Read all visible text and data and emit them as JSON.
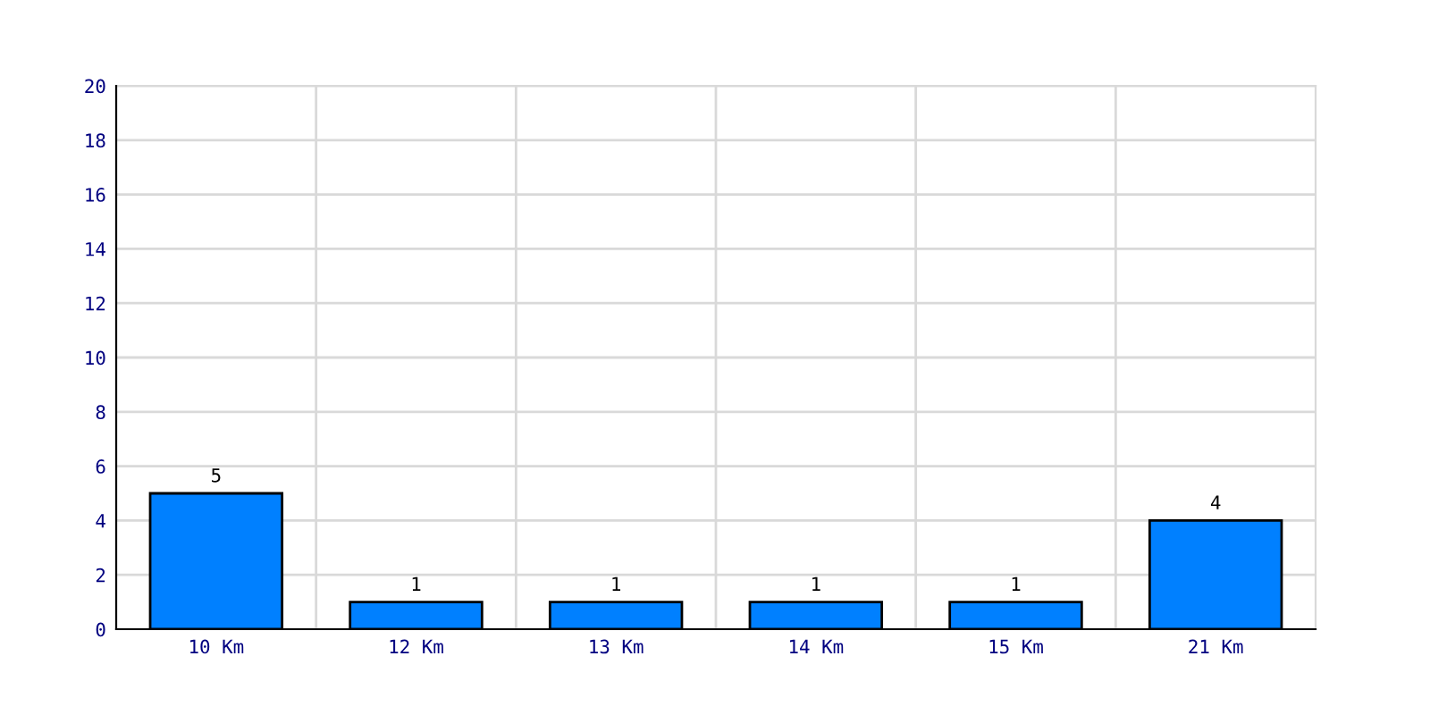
{
  "chart_data": {
    "type": "bar",
    "categories": [
      "10 Km",
      "12 Km",
      "13 Km",
      "14 Km",
      "15 Km",
      "21 Km"
    ],
    "values": [
      5,
      1,
      1,
      1,
      1,
      4
    ],
    "color": "#0080ff",
    "ylim": [
      0,
      20
    ],
    "yticks": [
      0,
      2,
      4,
      6,
      8,
      10,
      12,
      14,
      16,
      18,
      20
    ],
    "grid": true,
    "data_labels": true
  }
}
